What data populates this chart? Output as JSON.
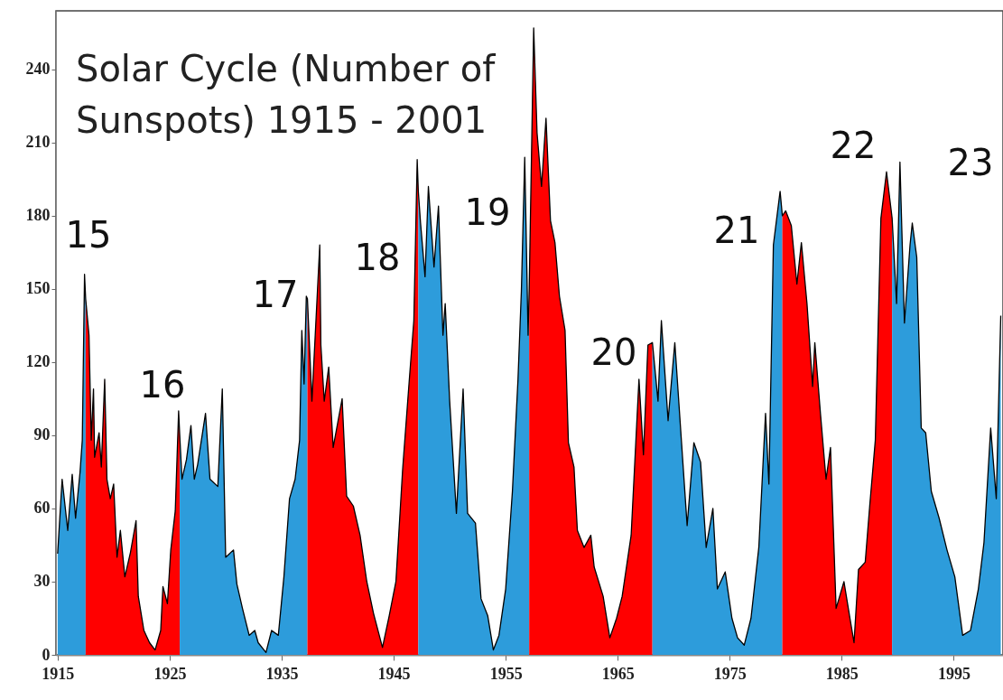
{
  "chart_data": {
    "type": "area",
    "title": "Solar Cycle (Number of Sunspots) 1915 - 2001",
    "xlim": [
      1914.85,
      1999.4
    ],
    "ylim": [
      0,
      264
    ],
    "xticks": [
      1915,
      1925,
      1935,
      1945,
      1955,
      1965,
      1975,
      1985,
      1995
    ],
    "yticks": [
      0,
      30,
      60,
      90,
      120,
      150,
      180,
      210,
      240
    ],
    "grid": false,
    "annotations": [
      "15",
      "16",
      "17",
      "18",
      "19",
      "20",
      "21",
      "22",
      "23"
    ],
    "series": [
      {
        "color": "#2d9cdb",
        "x": [
          1915.0,
          1915.4,
          1915.9,
          1916.3,
          1916.6,
          1917.0,
          1917.2,
          1917.4,
          1917.5
        ],
        "values": [
          41.5,
          72,
          51,
          74,
          56,
          75,
          88,
          156,
          146
        ]
      },
      {
        "color": "#ff0000",
        "x": [
          1917.5,
          1917.8,
          1918.0,
          1918.2,
          1918.3,
          1918.7,
          1918.9,
          1919.2,
          1919.4,
          1919.7,
          1920.0,
          1920.3,
          1920.6,
          1921.0,
          1921.5,
          1922.0,
          1922.2,
          1922.7,
          1923.2,
          1923.7,
          1924.2,
          1924.4,
          1924.8,
          1925.1,
          1925.5,
          1925.8,
          1925.9
        ],
        "values": [
          146,
          131,
          88,
          109,
          81,
          91,
          77,
          113,
          72,
          64,
          70,
          40,
          51,
          32,
          42,
          55,
          24,
          10,
          5,
          2,
          10,
          28,
          21,
          43,
          59,
          100,
          90
        ]
      },
      {
        "color": "#2d9cdb",
        "x": [
          1925.9,
          1926.1,
          1926.5,
          1926.9,
          1927.2,
          1927.5,
          1928.2,
          1928.6,
          1929.3,
          1929.7,
          1930.0,
          1930.7,
          1931.0,
          1931.5,
          1932.1,
          1932.6,
          1932.9,
          1933.6,
          1934.1,
          1934.7,
          1935.2,
          1935.7,
          1936.2,
          1936.6,
          1936.8,
          1937.0,
          1937.2,
          1937.3
        ],
        "values": [
          90,
          72,
          80,
          94,
          72,
          78,
          99,
          72,
          69,
          109,
          40,
          43,
          29,
          19,
          8,
          10,
          5,
          1,
          10,
          8,
          32,
          64,
          72,
          88,
          133,
          111,
          147,
          146
        ]
      },
      {
        "color": "#ff0000",
        "x": [
          1937.3,
          1937.7,
          1938.4,
          1938.5,
          1938.8,
          1939.2,
          1939.6,
          1940.4,
          1940.8,
          1941.4,
          1942.0,
          1942.6,
          1943.2,
          1944.0,
          1944.6,
          1945.2,
          1945.8,
          1946.4,
          1946.8,
          1947.1,
          1947.2
        ],
        "values": [
          146,
          104,
          168,
          127,
          104,
          118,
          85,
          105,
          65,
          61,
          49,
          30,
          17,
          3,
          16,
          30,
          76,
          113,
          137,
          203,
          190
        ]
      },
      {
        "color": "#2d9cdb",
        "x": [
          1947.2,
          1947.4,
          1947.8,
          1948.1,
          1948.6,
          1949.0,
          1949.4,
          1949.6,
          1950.0,
          1950.6,
          1951.2,
          1951.6,
          1952.3,
          1952.8,
          1953.4,
          1953.9,
          1954.4,
          1955.0,
          1955.6,
          1956.1,
          1956.4,
          1956.7,
          1957.0,
          1957.1
        ],
        "values": [
          190,
          177,
          155,
          192,
          159,
          184,
          131,
          144,
          104,
          58,
          109,
          58,
          54,
          23,
          16,
          2,
          8,
          27,
          67,
          113,
          149,
          204,
          131,
          150
        ]
      },
      {
        "color": "#ff0000",
        "x": [
          1957.1,
          1957.5,
          1957.8,
          1958.2,
          1958.6,
          1959.0,
          1959.4,
          1959.8,
          1960.3,
          1960.6,
          1961.1,
          1961.4,
          1962.0,
          1962.6,
          1962.9,
          1963.7,
          1964.3,
          1964.9,
          1965.4,
          1966.2,
          1966.9,
          1967.3,
          1967.7,
          1968.1
        ],
        "values": [
          150,
          257,
          214,
          192,
          220,
          178,
          169,
          147,
          133,
          87,
          77,
          51,
          44,
          49,
          36,
          24,
          7,
          15,
          24,
          49,
          113,
          82,
          127,
          128
        ]
      },
      {
        "color": "#2d9cdb",
        "x": [
          1968.1,
          1968.6,
          1968.9,
          1969.5,
          1970.1,
          1970.7,
          1971.2,
          1971.8,
          1972.4,
          1972.9,
          1973.5,
          1973.9,
          1974.6,
          1975.2,
          1975.7,
          1976.3,
          1976.9,
          1977.6,
          1978.2,
          1978.5,
          1978.9,
          1979.5,
          1979.7
        ],
        "values": [
          128,
          104,
          137,
          96,
          128,
          87,
          53,
          87,
          79,
          44,
          60,
          27,
          34,
          15,
          7,
          4,
          15,
          44,
          99,
          70,
          168,
          190,
          180
        ]
      },
      {
        "color": "#ff0000",
        "x": [
          1979.7,
          1980.0,
          1980.5,
          1981.0,
          1981.4,
          1981.9,
          1982.4,
          1982.6,
          1983.1,
          1983.6,
          1984.0,
          1984.5,
          1985.2,
          1985.7,
          1986.1,
          1986.5,
          1987.1,
          1987.5,
          1988.0,
          1988.5,
          1989.0,
          1989.5
        ],
        "values": [
          180,
          182,
          176,
          152,
          169,
          144,
          110,
          128,
          99,
          72,
          85,
          19,
          30,
          16,
          5,
          35,
          38,
          61,
          88,
          179,
          198,
          179
        ]
      },
      {
        "color": "#2d9cdb",
        "x": [
          1989.5,
          1989.9,
          1990.2,
          1990.6,
          1991.1,
          1991.3,
          1991.7,
          1992.1,
          1992.5,
          1993.0,
          1993.7,
          1994.4,
          1995.1,
          1995.8,
          1996.5,
          1997.2,
          1997.7,
          1998.3,
          1998.8,
          1999.2
        ],
        "values": [
          179,
          144,
          202,
          136,
          168,
          177,
          163,
          93,
          91,
          67,
          56,
          43,
          32,
          8,
          10,
          27,
          46,
          93,
          64,
          139
        ]
      },
      {
        "type": "line",
        "color": "#000000",
        "x": [
          1915.0,
          1915.4,
          1915.9,
          1916.3,
          1916.6,
          1917.0,
          1917.2,
          1917.4,
          1917.5,
          1917.8,
          1918.0,
          1918.2,
          1918.3,
          1918.7,
          1918.9,
          1919.2,
          1919.4,
          1919.7,
          1920.0,
          1920.3,
          1920.6,
          1921.0,
          1921.5,
          1922.0,
          1922.2,
          1922.7,
          1923.2,
          1923.7,
          1924.2,
          1924.4,
          1924.8,
          1925.1,
          1925.5,
          1925.8,
          1925.9,
          1926.1,
          1926.5,
          1926.9,
          1927.2,
          1927.5,
          1928.2,
          1928.6,
          1929.3,
          1929.7,
          1930.0,
          1930.7,
          1931.0,
          1931.5,
          1932.1,
          1932.6,
          1932.9,
          1933.6,
          1934.1,
          1934.7,
          1935.2,
          1935.7,
          1936.2,
          1936.6,
          1936.8,
          1937.0,
          1937.2,
          1937.3,
          1937.7,
          1938.4,
          1938.5,
          1938.8,
          1939.2,
          1939.6,
          1940.4,
          1940.8,
          1941.4,
          1942.0,
          1942.6,
          1943.2,
          1944.0,
          1944.6,
          1945.2,
          1945.8,
          1946.4,
          1946.8,
          1947.1,
          1947.2,
          1947.4,
          1947.8,
          1948.1,
          1948.6,
          1949.0,
          1949.4,
          1949.6,
          1950.0,
          1950.6,
          1951.2,
          1951.6,
          1952.3,
          1952.8,
          1953.4,
          1953.9,
          1954.4,
          1955.0,
          1955.6,
          1956.1,
          1956.4,
          1956.7,
          1957.0,
          1957.1,
          1957.5,
          1957.8,
          1958.2,
          1958.6,
          1959.0,
          1959.4,
          1959.8,
          1960.3,
          1960.6,
          1961.1,
          1961.4,
          1962.0,
          1962.6,
          1962.9,
          1963.7,
          1964.3,
          1964.9,
          1965.4,
          1966.2,
          1966.9,
          1967.3,
          1967.7,
          1968.1,
          1968.6,
          1968.9,
          1969.5,
          1970.1,
          1970.7,
          1971.2,
          1971.8,
          1972.4,
          1972.9,
          1973.5,
          1973.9,
          1974.6,
          1975.2,
          1975.7,
          1976.3,
          1976.9,
          1977.6,
          1978.2,
          1978.5,
          1978.9,
          1979.5,
          1979.7,
          1980.0,
          1980.5,
          1981.0,
          1981.4,
          1981.9,
          1982.4,
          1982.6,
          1983.1,
          1983.6,
          1984.0,
          1984.5,
          1985.2,
          1985.7,
          1986.1,
          1986.5,
          1987.1,
          1987.5,
          1988.0,
          1988.5,
          1989.0,
          1989.5,
          1989.9,
          1990.2,
          1990.6,
          1991.1,
          1991.3,
          1991.7,
          1992.1,
          1992.5,
          1993.0,
          1993.7,
          1994.4,
          1995.1,
          1995.8,
          1996.5,
          1997.2,
          1997.7,
          1998.3,
          1998.8,
          1999.2
        ],
        "values": [
          41.5,
          72,
          51,
          74,
          56,
          75,
          88,
          156,
          146,
          131,
          88,
          109,
          81,
          91,
          77,
          113,
          72,
          64,
          70,
          40,
          51,
          32,
          42,
          55,
          24,
          10,
          5,
          2,
          10,
          28,
          21,
          43,
          59,
          100,
          90,
          72,
          80,
          94,
          72,
          78,
          99,
          72,
          69,
          109,
          40,
          43,
          29,
          19,
          8,
          10,
          5,
          1,
          10,
          8,
          32,
          64,
          72,
          88,
          133,
          111,
          147,
          146,
          104,
          168,
          127,
          104,
          118,
          85,
          105,
          65,
          61,
          49,
          30,
          17,
          3,
          16,
          30,
          76,
          113,
          137,
          203,
          190,
          177,
          155,
          192,
          159,
          184,
          131,
          144,
          104,
          58,
          109,
          58,
          54,
          23,
          16,
          2,
          8,
          27,
          67,
          113,
          149,
          204,
          131,
          150,
          257,
          214,
          192,
          220,
          178,
          169,
          147,
          133,
          87,
          77,
          51,
          44,
          49,
          36,
          24,
          7,
          15,
          24,
          49,
          113,
          82,
          127,
          128,
          104,
          137,
          96,
          128,
          87,
          53,
          87,
          79,
          44,
          60,
          27,
          34,
          15,
          7,
          4,
          15,
          44,
          99,
          70,
          168,
          190,
          180,
          182,
          176,
          152,
          169,
          144,
          110,
          128,
          99,
          72,
          85,
          19,
          30,
          16,
          5,
          35,
          38,
          61,
          88,
          179,
          198,
          179,
          144,
          202,
          136,
          168,
          177,
          163,
          93,
          91,
          67,
          56,
          43,
          32,
          8,
          10,
          27,
          46,
          93,
          64,
          139
        ]
      }
    ]
  }
}
